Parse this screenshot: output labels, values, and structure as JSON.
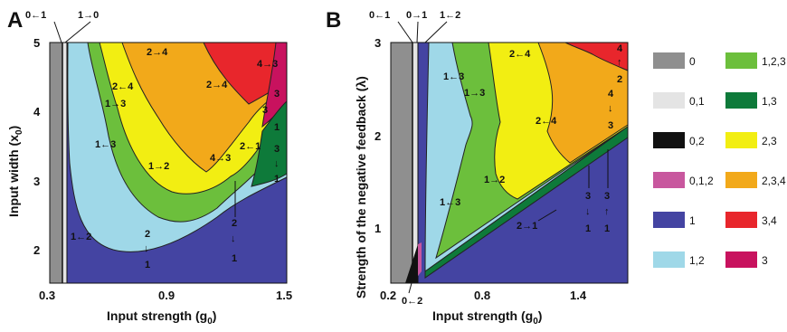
{
  "panels": {
    "A": {
      "letter": "A",
      "xlabel_main": "Input strength (g",
      "xlabel_sub": "0",
      "xlabel_end": ")",
      "ylabel_main": "Input width (x",
      "ylabel_sub": "0",
      "ylabel_end": ")",
      "xticks": [
        "0.3",
        "0.9",
        "1.5"
      ],
      "yticks": [
        "5",
        "4",
        "3",
        "2"
      ],
      "top_labels": [
        "0←1",
        "1→0"
      ],
      "region_labels": [
        "2→4",
        "4→3",
        "2←4",
        "2→4",
        "1→3",
        "3",
        "3",
        "1←3",
        "1",
        "1→2",
        "4→3",
        "2←1",
        "3",
        "↓",
        "1",
        "1←2",
        "2",
        "↓",
        "1",
        "2",
        "↓",
        "1"
      ]
    },
    "B": {
      "letter": "B",
      "xlabel_main": "Input strength (g",
      "xlabel_sub": "0",
      "xlabel_end": ")",
      "ylabel_main": "Strength of the negative feedback (λ)",
      "xticks": [
        "0.2",
        "0.8",
        "1.4"
      ],
      "yticks": [
        "3",
        "2",
        "1"
      ],
      "top_labels": [
        "0←1",
        "0→1",
        "1←2"
      ],
      "bottom_label": "0←2",
      "region_labels": [
        "2←4",
        "4",
        "↑",
        "2",
        "1←3",
        "1→3",
        "4",
        "↓",
        "3",
        "2←4",
        "1→2",
        "1←3",
        "2→1",
        "3",
        "↓",
        "1",
        "3",
        "↑",
        "1"
      ]
    }
  },
  "legend": [
    {
      "label": "0",
      "color": "#8f8f8f"
    },
    {
      "label": "1,2,3",
      "color": "#6cbf3c"
    },
    {
      "label": "0,1",
      "color": "#e4e4e4"
    },
    {
      "label": "1,3",
      "color": "#0e7a3a"
    },
    {
      "label": "0,2",
      "color": "#111111"
    },
    {
      "label": "2,3",
      "color": "#f2ee12"
    },
    {
      "label": "0,1,2",
      "color": "#c8579e"
    },
    {
      "label": "2,3,4",
      "color": "#f2a91a"
    },
    {
      "label": "1",
      "color": "#4444a2"
    },
    {
      "label": "3,4",
      "color": "#e8262c"
    },
    {
      "label": "1,2",
      "color": "#9fd8e8"
    },
    {
      "label": "3",
      "color": "#c8125e"
    }
  ]
}
